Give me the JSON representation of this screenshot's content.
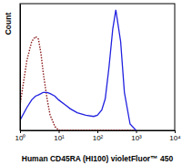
{
  "chart_data": {
    "type": "line",
    "x_label": "Human CD45RA (HI100) violetFluor™ 450",
    "y_label": "Count",
    "log": "x",
    "tick_labels": "x",
    "xlim": [
      1,
      10000
    ],
    "ylim": [
      0,
      100
    ],
    "xticks": [
      {
        "value": 1,
        "label": "10⁰"
      },
      {
        "value": 10,
        "label": "10¹"
      },
      {
        "value": 100,
        "label": "10²"
      },
      {
        "value": 1000,
        "label": "10³"
      },
      {
        "value": 10000,
        "label": "10⁴"
      }
    ],
    "x": [
      1,
      1.5,
      2,
      2.5,
      3,
      3.5,
      4,
      5,
      6,
      8,
      10,
      15,
      20,
      30,
      50,
      80,
      100,
      130,
      160,
      200,
      250,
      300,
      400,
      500,
      700,
      1000
    ],
    "series": [
      {
        "color": "#8b1a1a",
        "line_style": "dotted",
        "values": [
          20,
          55,
          70,
          74,
          72,
          60,
          45,
          25,
          12,
          3,
          0,
          0,
          0,
          0,
          0,
          0,
          0,
          0,
          0,
          0,
          0,
          0,
          0,
          0,
          0,
          0
        ]
      },
      {
        "color": "#2020e0",
        "line_style": "solid",
        "values": [
          8,
          18,
          24,
          27,
          28,
          29,
          30,
          30,
          29,
          27,
          24,
          20,
          17,
          14,
          12,
          11,
          12,
          16,
          25,
          50,
          80,
          95,
          70,
          30,
          5,
          0
        ]
      }
    ]
  }
}
